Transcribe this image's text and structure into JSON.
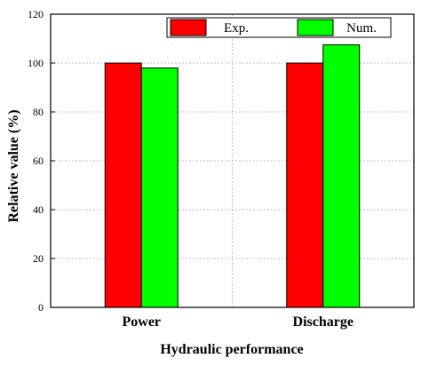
{
  "chart_data": {
    "type": "bar",
    "categories": [
      "Power",
      "Discharge"
    ],
    "series": [
      {
        "name": "Exp.",
        "values": [
          100,
          100
        ],
        "color": "#ff0000"
      },
      {
        "name": "Num.",
        "values": [
          98,
          107.5
        ],
        "color": "#00ff00"
      }
    ],
    "xlabel": "Hydraulic performance",
    "ylabel": "Relative value (%)",
    "ylim": [
      0,
      120
    ],
    "yticks": [
      "0",
      "20",
      "40",
      "60",
      "80",
      "100",
      "120"
    ],
    "grid": true,
    "legend_position": "top-right"
  }
}
